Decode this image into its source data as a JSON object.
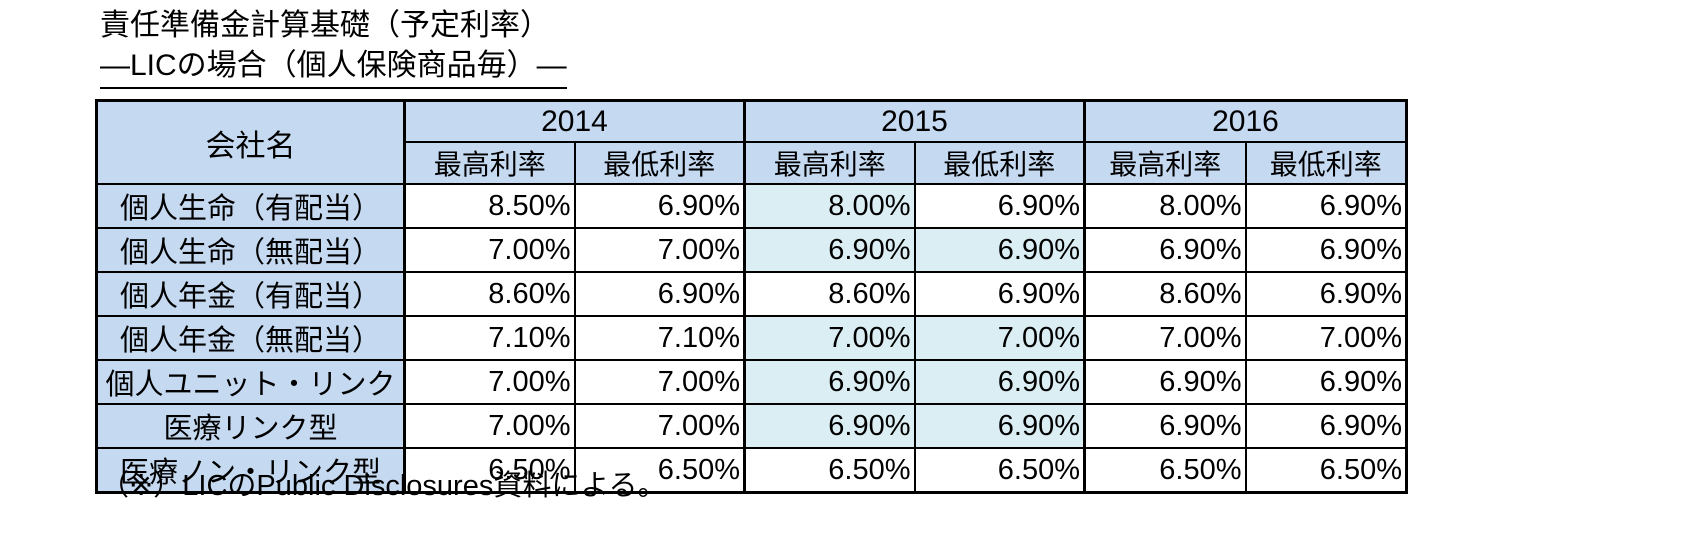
{
  "title": {
    "line1": "責任準備金計算基礎（予定利率）",
    "line2": "—LICの場合（個人保険商品毎）—"
  },
  "table": {
    "company_header": "会社名",
    "year_groups": [
      {
        "year": "2014",
        "sub_headers": [
          "最高利率",
          "最低利率"
        ]
      },
      {
        "year": "2015",
        "sub_headers": [
          "最高利率",
          "最低利率"
        ]
      },
      {
        "year": "2016",
        "sub_headers": [
          "最高利率",
          "最低利率"
        ]
      }
    ],
    "rows": [
      {
        "label": "個人生命（有配当）",
        "values": [
          "8.50%",
          "6.90%",
          "8.00%",
          "6.90%",
          "8.00%",
          "6.90%"
        ],
        "highlight": [
          false,
          false,
          true,
          false,
          false,
          false
        ]
      },
      {
        "label": "個人生命（無配当）",
        "values": [
          "7.00%",
          "7.00%",
          "6.90%",
          "6.90%",
          "6.90%",
          "6.90%"
        ],
        "highlight": [
          false,
          false,
          true,
          true,
          false,
          false
        ]
      },
      {
        "label": "個人年金（有配当）",
        "values": [
          "8.60%",
          "6.90%",
          "8.60%",
          "6.90%",
          "8.60%",
          "6.90%"
        ],
        "highlight": [
          false,
          false,
          false,
          false,
          false,
          false
        ]
      },
      {
        "label": "個人年金（無配当）",
        "values": [
          "7.10%",
          "7.10%",
          "7.00%",
          "7.00%",
          "7.00%",
          "7.00%"
        ],
        "highlight": [
          false,
          false,
          true,
          true,
          false,
          false
        ]
      },
      {
        "label": "個人ユニット・リンク",
        "values": [
          "7.00%",
          "7.00%",
          "6.90%",
          "6.90%",
          "6.90%",
          "6.90%"
        ],
        "highlight": [
          false,
          false,
          true,
          true,
          false,
          false
        ]
      },
      {
        "label": "医療リンク型",
        "values": [
          "7.00%",
          "7.00%",
          "6.90%",
          "6.90%",
          "6.90%",
          "6.90%"
        ],
        "highlight": [
          false,
          false,
          true,
          true,
          false,
          false
        ]
      },
      {
        "label": "医療ノン・リンク型",
        "values": [
          "6.50%",
          "6.50%",
          "6.50%",
          "6.50%",
          "6.50%",
          "6.50%"
        ],
        "highlight": [
          false,
          false,
          false,
          false,
          false,
          false
        ]
      }
    ]
  },
  "footnote": "（※）LICのPublic Disclosures資料による。",
  "colors": {
    "header_bg": "#C5D9F1",
    "highlight_bg": "#DAEEF3",
    "border": "#000000",
    "background": "#FFFFFF"
  }
}
